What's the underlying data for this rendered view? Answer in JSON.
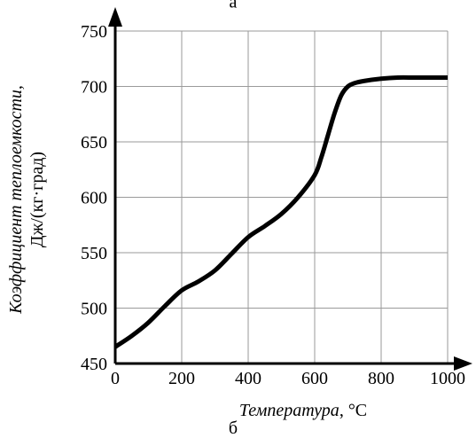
{
  "panel_top_label": "а",
  "panel_bottom_label": "б",
  "chart_data": {
    "type": "line",
    "xlabel_italic": "Температура",
    "xlabel_unit": ", °C",
    "ylabel_line1": "Коэффициент теплоемкости,",
    "ylabel_line2": "Дж/(кг·град)",
    "xlim": [
      0,
      1000
    ],
    "ylim": [
      450,
      750
    ],
    "xticks": [
      0,
      200,
      400,
      600,
      800,
      1000
    ],
    "yticks": [
      450,
      500,
      550,
      600,
      650,
      700,
      750
    ],
    "grid": true,
    "series": [
      {
        "x": [
          0,
          50,
          100,
          150,
          200,
          250,
          300,
          350,
          400,
          450,
          500,
          550,
          600,
          620,
          640,
          660,
          680,
          700,
          720,
          750,
          800,
          850,
          900,
          950,
          1000
        ],
        "y": [
          465,
          475,
          487,
          502,
          516,
          524,
          534,
          549,
          564,
          574,
          585,
          600,
          620,
          636,
          656,
          676,
          692,
          700,
          703,
          705,
          707,
          708,
          708,
          708,
          708
        ]
      }
    ]
  }
}
